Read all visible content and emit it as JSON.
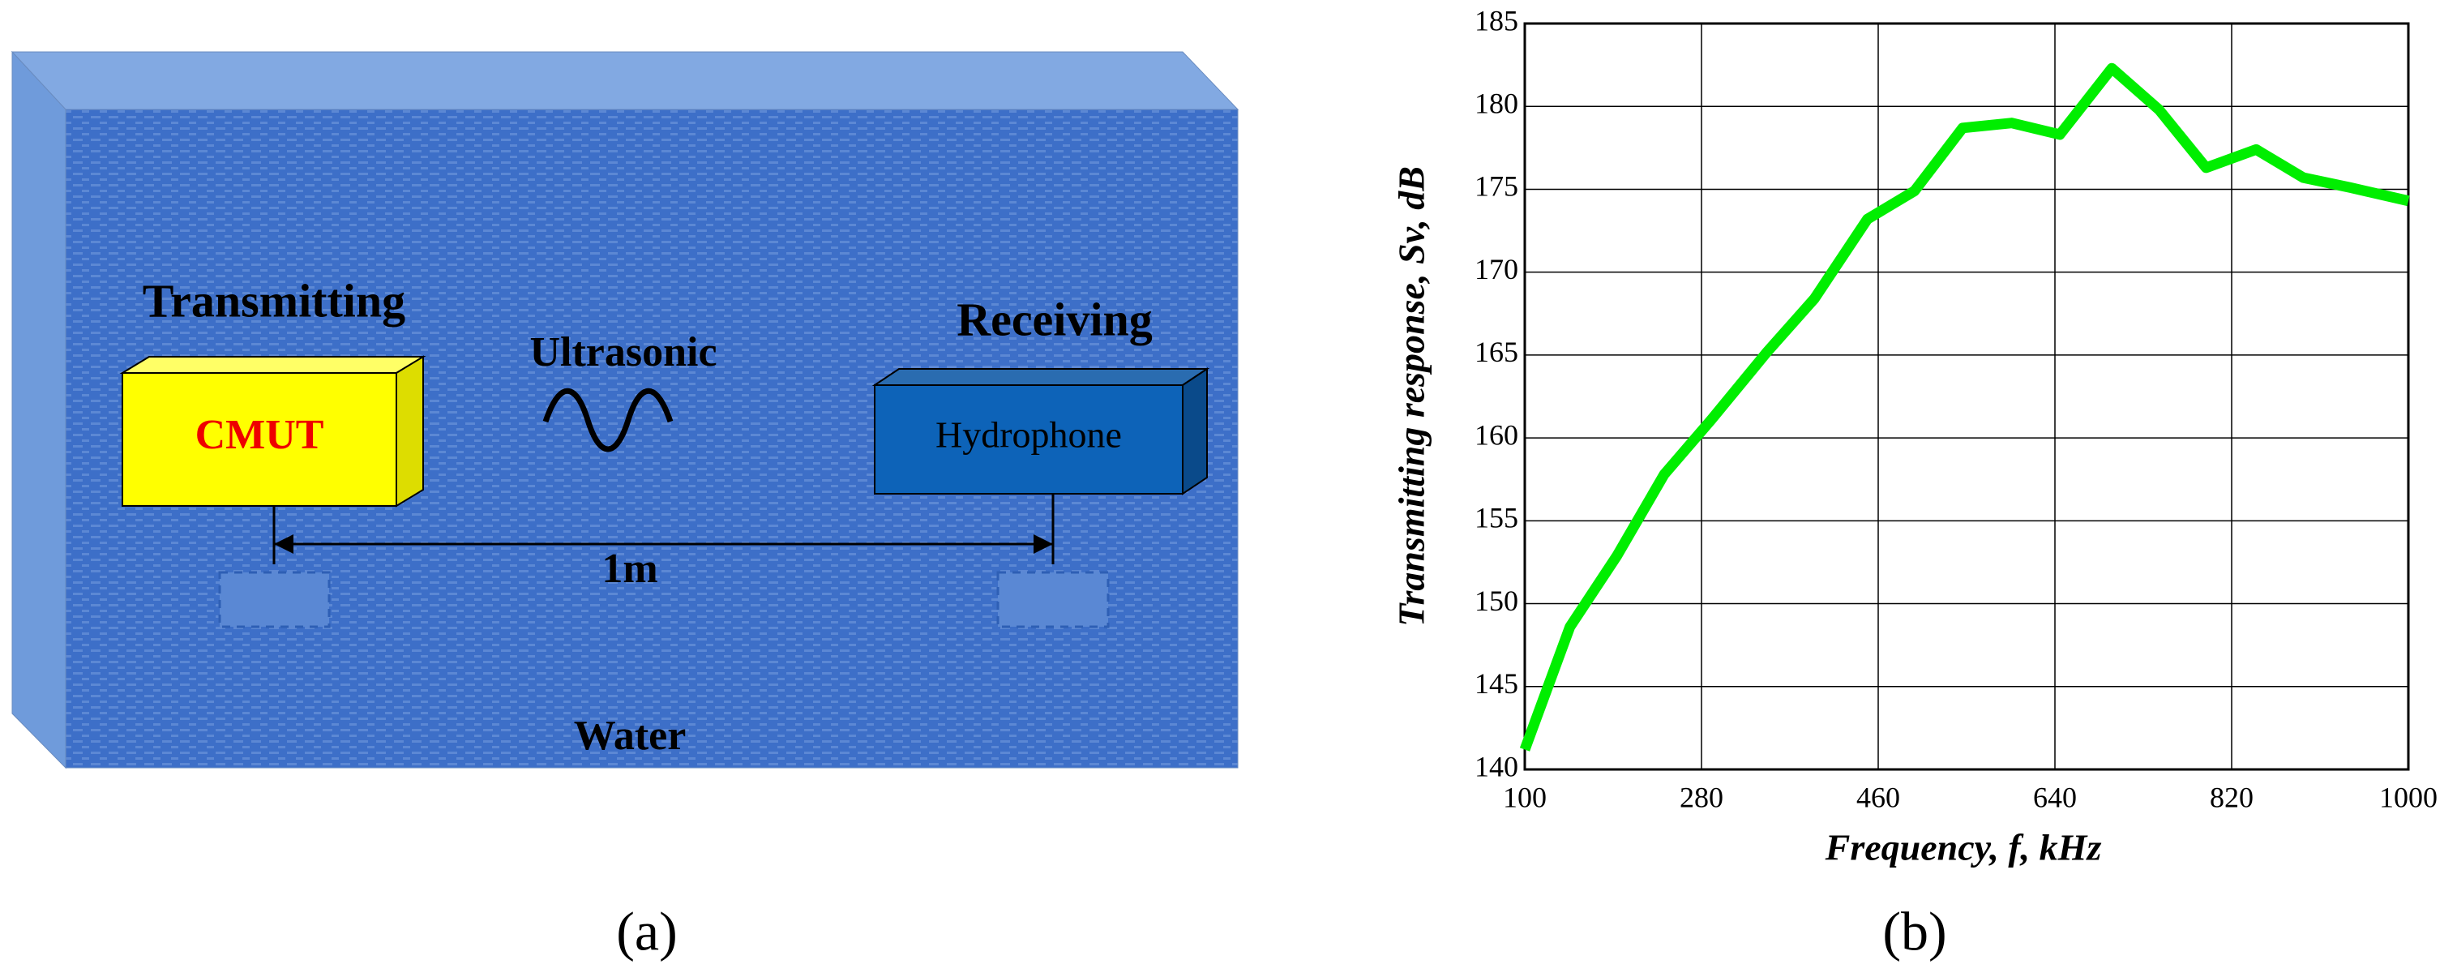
{
  "diagram": {
    "transmitting": "Transmitting",
    "transmitter": "CMUT",
    "wave": "Ultrasonic",
    "receiving": "Receiving",
    "receiver": "Hydrophone",
    "distance": "1m",
    "medium": "Water"
  },
  "captions": [
    "(a)",
    "(b)"
  ],
  "chart_data": {
    "type": "line",
    "xlabel": "Frequency, f, kHz",
    "ylabel": "Transmitting response, Sv, dB",
    "x": [
      100,
      146,
      194,
      242,
      290,
      347,
      395,
      449,
      497,
      546,
      596,
      645,
      698,
      746,
      794,
      845,
      893,
      941,
      1000
    ],
    "values": [
      141.2,
      148.6,
      152.9,
      157.8,
      161.1,
      165.2,
      168.4,
      173.2,
      174.9,
      178.7,
      179.0,
      178.3,
      182.3,
      179.8,
      176.3,
      177.4,
      175.7,
      175.1,
      174.3
    ],
    "color": "#00ee00",
    "xlim": [
      100,
      1000
    ],
    "xticks": [
      100,
      280,
      460,
      640,
      820,
      1000
    ],
    "ylim": [
      140,
      185
    ],
    "yticks": [
      140,
      145,
      150,
      155,
      160,
      165,
      170,
      175,
      180,
      185
    ],
    "grid": true
  }
}
